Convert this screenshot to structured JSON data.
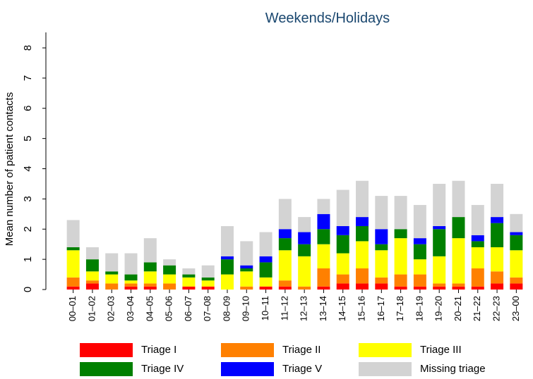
{
  "chart_data": {
    "type": "stacked_bar",
    "title": "Weekends/Holidays",
    "y_label": "Mean number of patient contacts",
    "categories": [
      "00–01",
      "01–02",
      "02–03",
      "03–04",
      "04–05",
      "05–06",
      "06–07",
      "07–08",
      "08–09",
      "09–10",
      "10–11",
      "11–12",
      "12–13",
      "13–14",
      "14–15",
      "15–16",
      "16–17",
      "17–18",
      "18–19",
      "19–20",
      "20–21",
      "21–22",
      "22–23",
      "23–00"
    ],
    "series": [
      {
        "name": "Triage I",
        "color": "#ff0000",
        "values": [
          0.1,
          0.2,
          0,
          0.1,
          0.1,
          0,
          0.1,
          0.1,
          0,
          0,
          0.1,
          0.1,
          0,
          0.1,
          0.2,
          0.2,
          0.2,
          0.1,
          0.1,
          0.1,
          0.1,
          0.1,
          0.2,
          0.2
        ]
      },
      {
        "name": "Triage II",
        "color": "#ff8000",
        "values": [
          0.3,
          0.1,
          0.2,
          0.1,
          0.1,
          0.2,
          0,
          0,
          0,
          0.1,
          0,
          0.2,
          0.1,
          0.6,
          0.3,
          0.5,
          0.2,
          0.4,
          0.4,
          0.1,
          0.1,
          0.6,
          0.4,
          0.2
        ]
      },
      {
        "name": "Triage III",
        "color": "#ffff00",
        "values": [
          0.9,
          0.3,
          0.3,
          0.1,
          0.4,
          0.3,
          0.3,
          0.2,
          0.5,
          0.5,
          0.3,
          1.0,
          1.0,
          0.8,
          0.7,
          0.9,
          0.9,
          1.2,
          0.5,
          0.9,
          1.5,
          0.7,
          0.8,
          0.9
        ]
      },
      {
        "name": "Triage IV",
        "color": "#008000",
        "values": [
          0.1,
          0.4,
          0.1,
          0.2,
          0.3,
          0.3,
          0.1,
          0.1,
          0.5,
          0.1,
          0.5,
          0.4,
          0.4,
          0.5,
          0.6,
          0.5,
          0.2,
          0.3,
          0.5,
          0.9,
          0.7,
          0.2,
          0.8,
          0.5
        ]
      },
      {
        "name": "Triage V",
        "color": "#0000ff",
        "values": [
          0,
          0,
          0,
          0,
          0,
          0,
          0,
          0,
          0.1,
          0.1,
          0.2,
          0.3,
          0.4,
          0.5,
          0.3,
          0.3,
          0.5,
          0,
          0.2,
          0.1,
          0,
          0.2,
          0.2,
          0.1
        ]
      },
      {
        "name": "Missing triage",
        "color": "#d3d3d3",
        "values": [
          0.9,
          0.4,
          0.6,
          0.7,
          0.8,
          0.2,
          0.2,
          0.4,
          1.0,
          0.8,
          0.8,
          1.0,
          0.5,
          0.5,
          1.2,
          1.2,
          1.1,
          1.1,
          1.1,
          1.4,
          1.2,
          1.0,
          1.1,
          0.6
        ]
      }
    ],
    "ylim": [
      0,
      8
    ],
    "yticks": [
      0,
      1,
      2,
      3,
      4,
      5,
      6,
      7,
      8
    ],
    "title_color": "#1a476f"
  }
}
